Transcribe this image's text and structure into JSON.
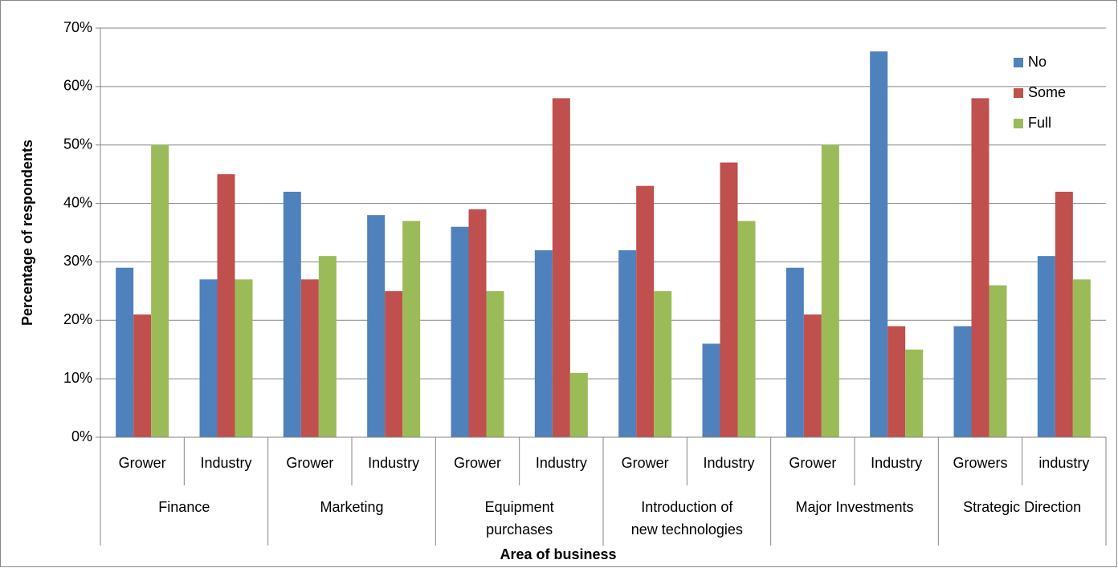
{
  "chart_data": {
    "type": "bar",
    "y_label": "Percentage of respondents",
    "x_label": "Area of business",
    "categories": [
      "Grower",
      "Industry",
      "Grower",
      "Industry",
      "Grower",
      "Industry",
      "Grower",
      "Industry",
      "Grower",
      "Industry",
      "Growers",
      "industry"
    ],
    "groups": [
      "Finance",
      "Marketing",
      "Equipment\npurchases",
      "Introduction of\nnew technologies",
      "Major Investments",
      "Strategic Direction"
    ],
    "series": [
      {
        "name": "No",
        "color": "#4f81bd",
        "values": [
          29,
          27,
          42,
          38,
          36,
          32,
          32,
          16,
          29,
          66,
          19,
          31
        ]
      },
      {
        "name": "Some",
        "color": "#c0504d",
        "values": [
          21,
          45,
          27,
          25,
          39,
          58,
          43,
          47,
          21,
          19,
          58,
          42
        ]
      },
      {
        "name": "Full",
        "color": "#9bbb59",
        "values": [
          50,
          27,
          31,
          37,
          25,
          11,
          25,
          37,
          50,
          15,
          26,
          27
        ]
      }
    ],
    "ylim": [
      0,
      70
    ],
    "yticks": [
      {
        "value": 0,
        "label": "0%"
      },
      {
        "value": 10,
        "label": "10%"
      },
      {
        "value": 20,
        "label": "20%"
      },
      {
        "value": 30,
        "label": "30%"
      },
      {
        "value": 40,
        "label": "40%"
      },
      {
        "value": 50,
        "label": "50%"
      },
      {
        "value": 60,
        "label": "60%"
      },
      {
        "value": 70,
        "label": "70%"
      }
    ],
    "grid": true,
    "legend": "top-right"
  }
}
